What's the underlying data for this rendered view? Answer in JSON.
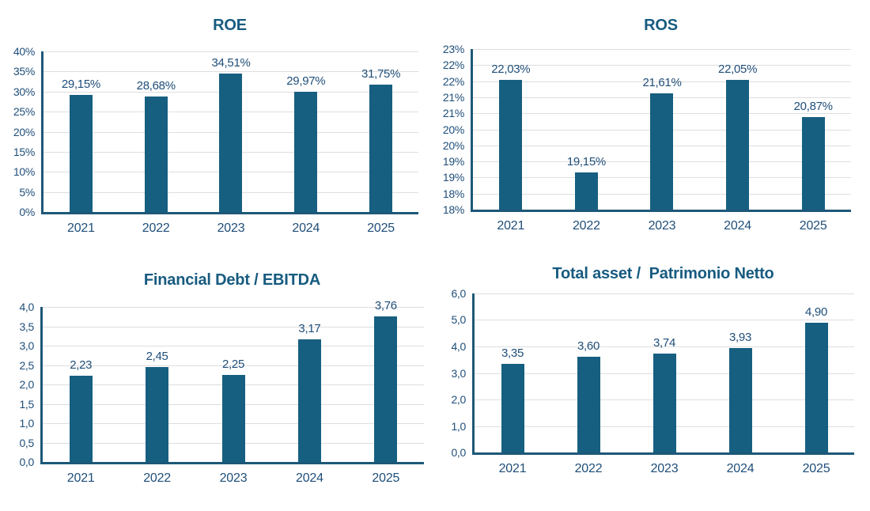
{
  "style": {
    "bar_color": "#165F80",
    "title_color": "#175B80",
    "label_color": "#1F4E79",
    "axis_color": "#1D5878",
    "grid_color": "#DEDEDE"
  },
  "chart_data": [
    {
      "id": "roe",
      "type": "bar",
      "title": "ROE",
      "categories": [
        "2021",
        "2022",
        "2023",
        "2024",
        "2025"
      ],
      "values": [
        29.15,
        28.68,
        34.51,
        29.97,
        31.75
      ],
      "value_labels": [
        "29,15%",
        "28,68%",
        "34,51%",
        "29,97%",
        "31,75%"
      ],
      "ylim": [
        0,
        40
      ],
      "ytick_labels": [
        "40%",
        "35%",
        "30%",
        "25%",
        "20%",
        "15%",
        "10%",
        "5%",
        "0%"
      ],
      "grid": true,
      "legend": "none",
      "xlabel": "",
      "ylabel": ""
    },
    {
      "id": "ros",
      "type": "bar",
      "title": "ROS",
      "categories": [
        "2021",
        "2022",
        "2023",
        "2024",
        "2025"
      ],
      "values": [
        22.03,
        19.15,
        21.61,
        22.05,
        20.87
      ],
      "value_labels": [
        "22,03%",
        "19,15%",
        "21,61%",
        "22,05%",
        "20,87%"
      ],
      "ylim": [
        18,
        23
      ],
      "ytick_labels": [
        "23%",
        "22%",
        "22%",
        "21%",
        "21%",
        "20%",
        "20%",
        "19%",
        "19%",
        "18%",
        "18%"
      ],
      "grid": true,
      "legend": "none",
      "xlabel": "",
      "ylabel": ""
    },
    {
      "id": "fd",
      "type": "bar",
      "title": "Financial Debt / EBITDA",
      "categories": [
        "2021",
        "2022",
        "2023",
        "2024",
        "2025"
      ],
      "values": [
        2.23,
        2.45,
        2.25,
        3.17,
        3.76
      ],
      "value_labels": [
        "2,23",
        "2,45",
        "2,25",
        "3,17",
        "3,76"
      ],
      "ylim": [
        0,
        4
      ],
      "ytick_labels": [
        "4,0",
        "3,5",
        "3,0",
        "2,5",
        "2,0",
        "1,5",
        "1,0",
        "0,5",
        "0,0"
      ],
      "grid": true,
      "legend": "none",
      "xlabel": "",
      "ylabel": ""
    },
    {
      "id": "ta",
      "type": "bar",
      "title": "Total asset /  Patrimonio Netto",
      "categories": [
        "2021",
        "2022",
        "2023",
        "2024",
        "2025"
      ],
      "values": [
        3.35,
        3.6,
        3.74,
        3.93,
        4.9
      ],
      "value_labels": [
        "3,35",
        "3,60",
        "3,74",
        "3,93",
        "4,90"
      ],
      "ylim": [
        0,
        6
      ],
      "ytick_labels": [
        "6,0",
        "5,0",
        "4,0",
        "3,0",
        "2,0",
        "1,0",
        "0,0"
      ],
      "grid": true,
      "legend": "none",
      "xlabel": "",
      "ylabel": ""
    }
  ]
}
